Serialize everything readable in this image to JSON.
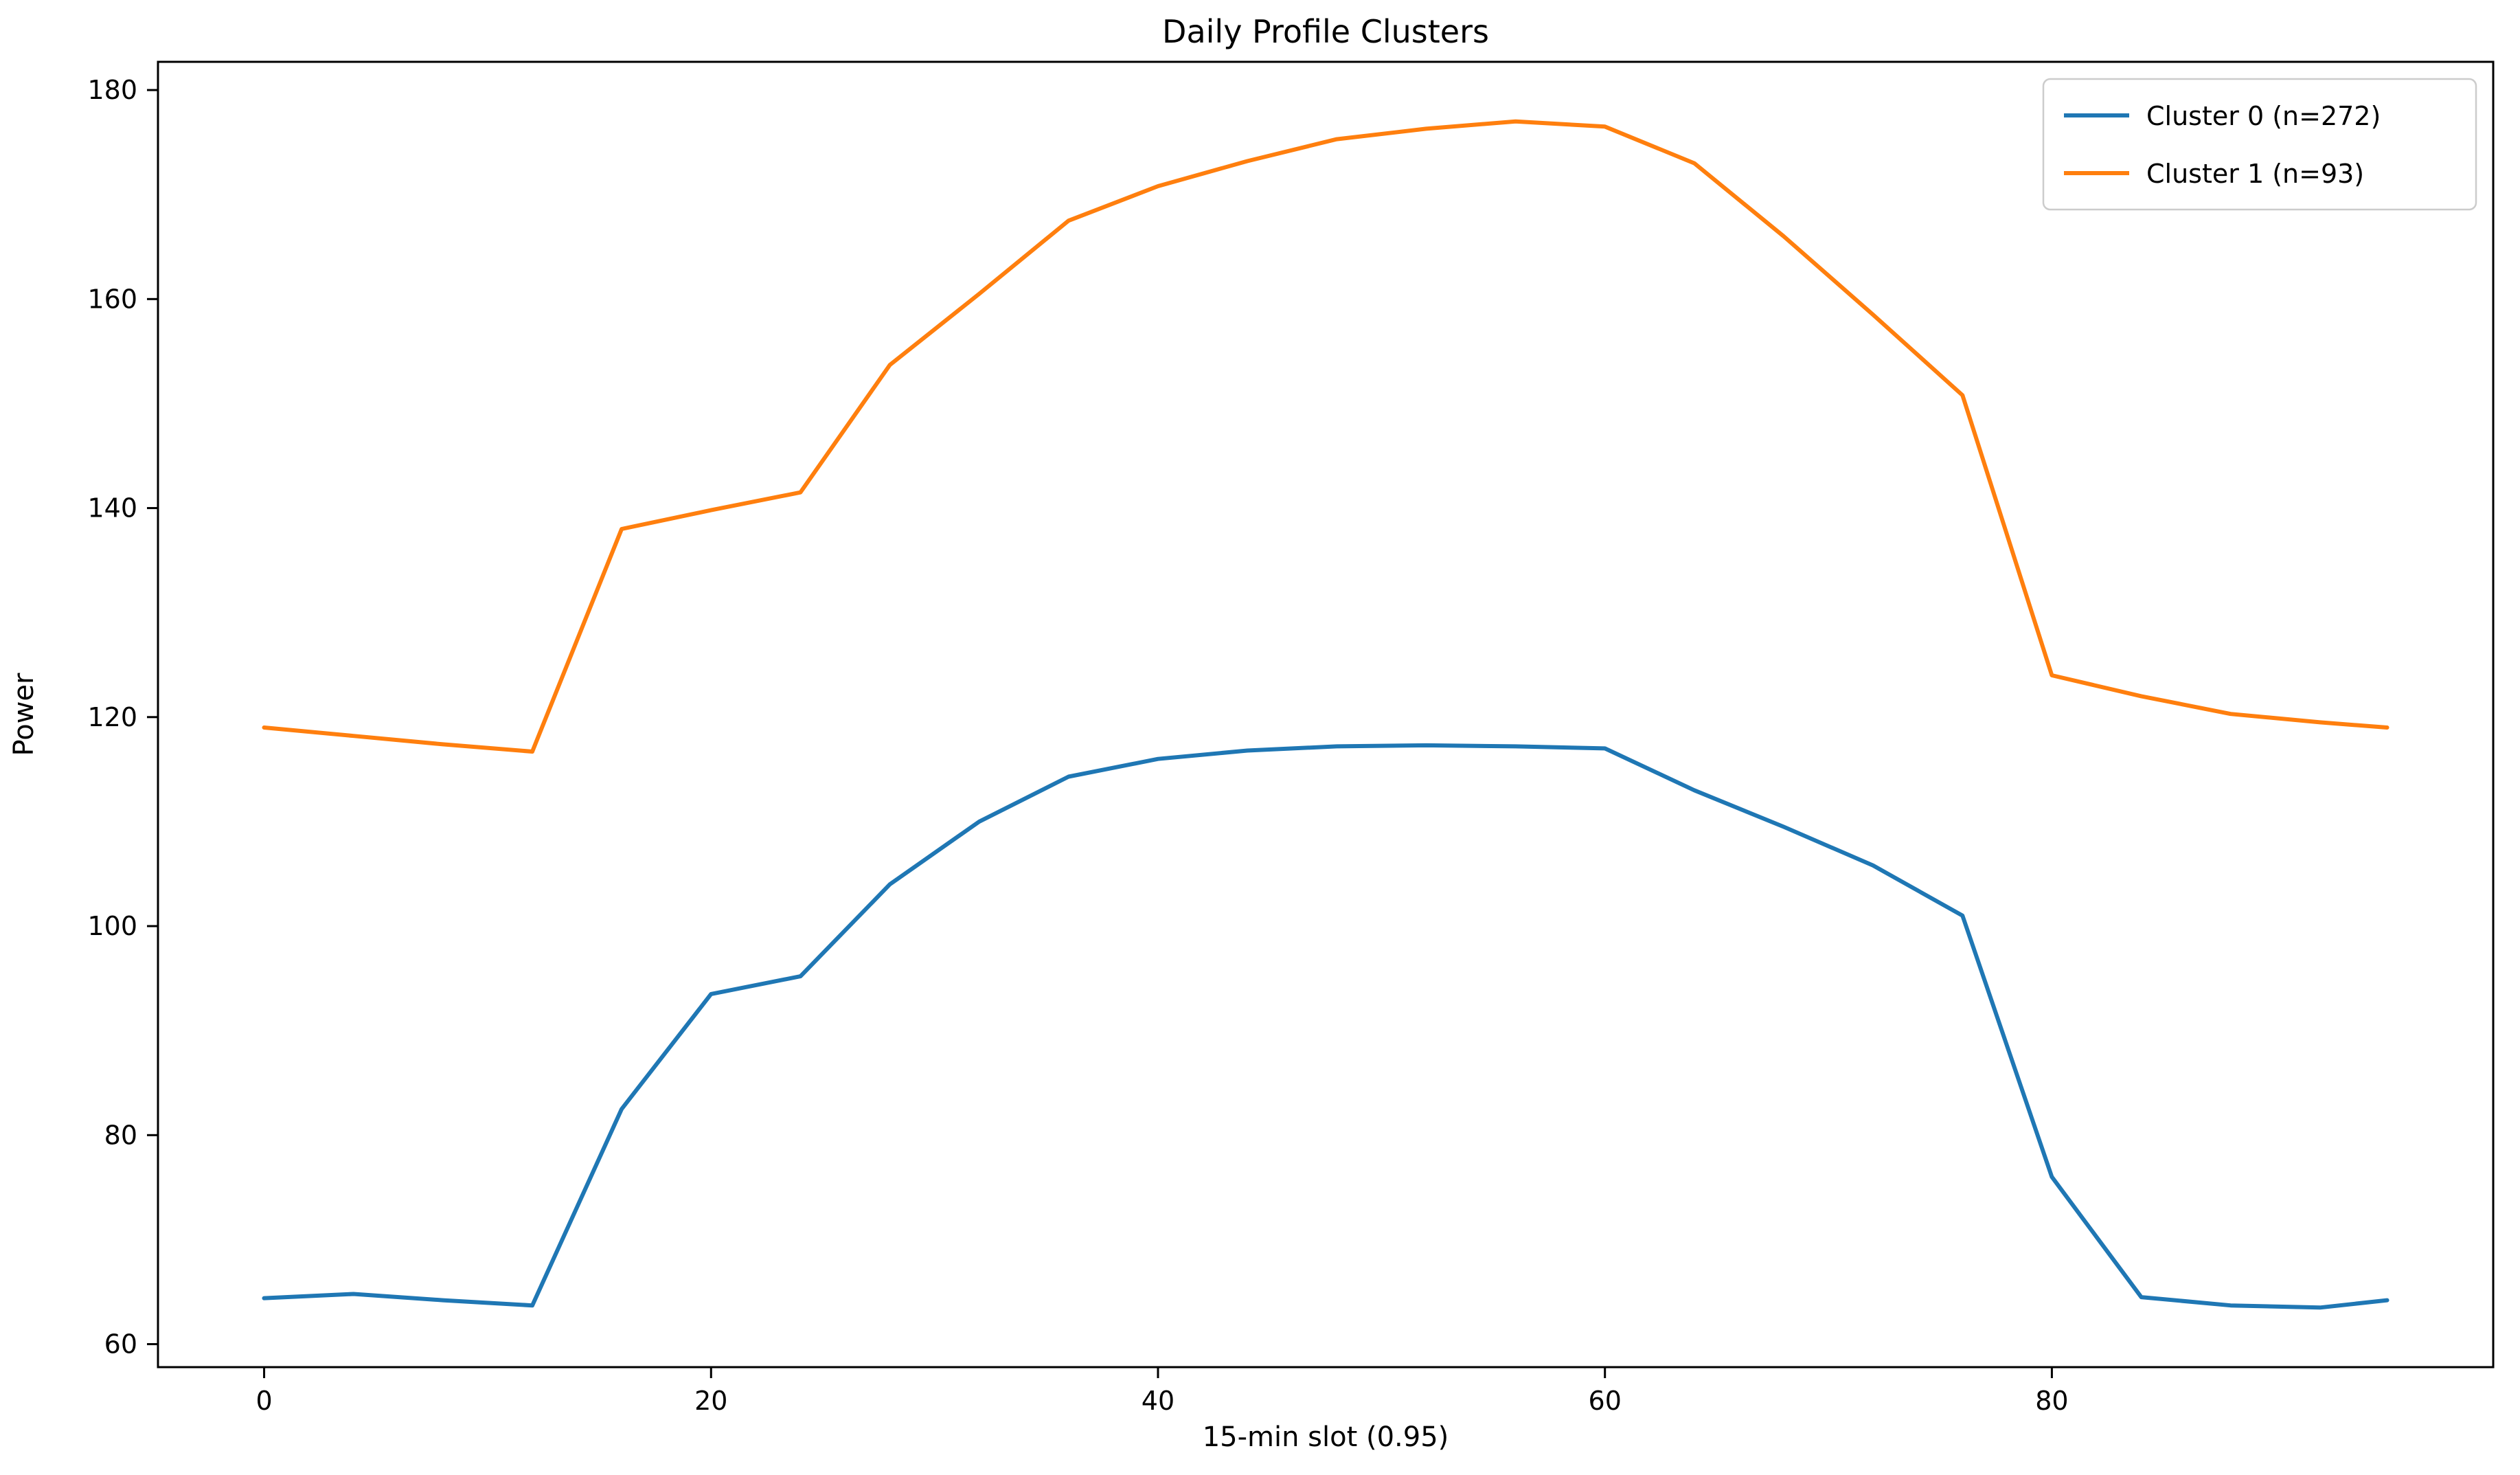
{
  "chart_data": {
    "type": "line",
    "title": "Daily Profile Clusters",
    "xlabel": "15-min slot (0.95)",
    "ylabel": "Power",
    "grid": false,
    "legend_position": "upper right",
    "xlim": [
      -4.75,
      99.75
    ],
    "ylim": [
      57.8,
      182.7
    ],
    "xticks": [
      0,
      20,
      40,
      60,
      80
    ],
    "yticks": [
      60,
      80,
      100,
      120,
      140,
      160,
      180
    ],
    "x": [
      0,
      4,
      8,
      12,
      16,
      20,
      24,
      28,
      32,
      36,
      40,
      44,
      48,
      52,
      56,
      60,
      64,
      68,
      72,
      76,
      80,
      84,
      88,
      92,
      95
    ],
    "series": [
      {
        "name": "Cluster 0 (n=272)",
        "color": "#1f77b4",
        "values": [
          64.4,
          64.8,
          64.2,
          63.7,
          82.5,
          93.5,
          95.2,
          104.0,
          110.0,
          114.3,
          116.0,
          116.8,
          117.2,
          117.3,
          117.2,
          117.0,
          113.0,
          109.5,
          105.8,
          101.0,
          76.0,
          64.5,
          63.7,
          63.5,
          64.2
        ]
      },
      {
        "name": "Cluster 1 (n=93)",
        "color": "#ff7f0e",
        "values": [
          119.0,
          118.2,
          117.4,
          116.7,
          138.0,
          139.8,
          141.5,
          153.7,
          160.5,
          167.5,
          170.8,
          173.2,
          175.3,
          176.3,
          177.0,
          176.5,
          173.0,
          166.0,
          158.5,
          150.8,
          124.0,
          122.0,
          120.3,
          119.5,
          119.0
        ]
      }
    ]
  }
}
